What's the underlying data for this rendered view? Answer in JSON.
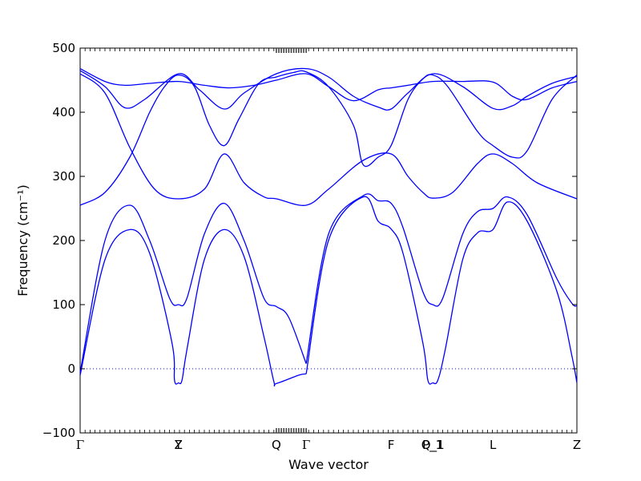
{
  "chart_data": {
    "type": "line",
    "title": "",
    "xlabel": "Wave vector",
    "ylabel": "Frequency (cm⁻¹)",
    "ylim": [
      -100,
      500
    ],
    "yticks": [
      -100,
      0,
      100,
      200,
      300,
      400,
      500
    ],
    "xlim": [
      0,
      1
    ],
    "high_symmetry_points": [
      {
        "label": "Γ",
        "x": 0.0
      },
      {
        "label": "Y",
        "x": 0.198
      },
      {
        "label": "Z",
        "x": 0.198
      },
      {
        "label": "Q",
        "x": 0.395
      },
      {
        "label": "Γ",
        "x": 0.455
      },
      {
        "label": "F",
        "x": 0.626
      },
      {
        "label": "P_1",
        "x": 0.71
      },
      {
        "label": "Q_1",
        "x": 0.71
      },
      {
        "label": "L",
        "x": 0.831
      },
      {
        "label": "Z",
        "x": 1.0
      }
    ],
    "zero_line": true,
    "line_color": "#0000ff",
    "series": [
      {
        "values": [
          [
            0.0,
            -10
          ],
          [
            0.05,
            170
          ],
          [
            0.1,
            217
          ],
          [
            0.14,
            180
          ],
          [
            0.185,
            40
          ],
          [
            0.19,
            -18
          ],
          [
            0.198,
            -22
          ],
          [
            0.205,
            -18
          ],
          [
            0.215,
            30
          ],
          [
            0.25,
            170
          ],
          [
            0.29,
            217
          ],
          [
            0.33,
            175
          ],
          [
            0.37,
            50
          ],
          [
            0.39,
            -20
          ],
          [
            0.395,
            -23
          ],
          [
            0.44,
            -10
          ],
          [
            0.455,
            -8
          ]
        ]
      },
      {
        "values": [
          [
            0.0,
            -6
          ],
          [
            0.05,
            200
          ],
          [
            0.1,
            255
          ],
          [
            0.14,
            200
          ],
          [
            0.18,
            110
          ],
          [
            0.198,
            100
          ],
          [
            0.215,
            110
          ],
          [
            0.25,
            210
          ],
          [
            0.29,
            258
          ],
          [
            0.33,
            200
          ],
          [
            0.37,
            110
          ],
          [
            0.395,
            97
          ],
          [
            0.42,
            80
          ],
          [
            0.455,
            8
          ]
        ]
      },
      {
        "values": [
          [
            0.455,
            -8
          ],
          [
            0.5,
            200
          ],
          [
            0.57,
            268
          ],
          [
            0.6,
            230
          ],
          [
            0.626,
            218
          ],
          [
            0.65,
            180
          ],
          [
            0.69,
            40
          ],
          [
            0.7,
            -18
          ],
          [
            0.71,
            -22
          ],
          [
            0.72,
            -18
          ],
          [
            0.735,
            30
          ],
          [
            0.77,
            170
          ],
          [
            0.8,
            212
          ],
          [
            0.831,
            217
          ],
          [
            0.86,
            260
          ],
          [
            0.9,
            230
          ],
          [
            0.96,
            120
          ],
          [
            0.99,
            20
          ],
          [
            1.0,
            -22
          ]
        ]
      },
      {
        "values": [
          [
            0.455,
            8
          ],
          [
            0.5,
            210
          ],
          [
            0.57,
            270
          ],
          [
            0.6,
            262
          ],
          [
            0.626,
            258
          ],
          [
            0.65,
            220
          ],
          [
            0.69,
            120
          ],
          [
            0.71,
            100
          ],
          [
            0.73,
            110
          ],
          [
            0.77,
            210
          ],
          [
            0.8,
            245
          ],
          [
            0.831,
            250
          ],
          [
            0.86,
            268
          ],
          [
            0.9,
            240
          ],
          [
            0.96,
            140
          ],
          [
            0.99,
            102
          ],
          [
            1.0,
            98
          ]
        ]
      },
      {
        "values": [
          [
            0.0,
            255
          ],
          [
            0.05,
            275
          ],
          [
            0.1,
            330
          ],
          [
            0.14,
            400
          ],
          [
            0.17,
            440
          ],
          [
            0.198,
            458
          ],
          [
            0.23,
            440
          ],
          [
            0.26,
            380
          ],
          [
            0.29,
            348
          ],
          [
            0.32,
            390
          ],
          [
            0.36,
            445
          ],
          [
            0.395,
            455
          ],
          [
            0.43,
            462
          ],
          [
            0.455,
            463
          ],
          [
            0.5,
            440
          ],
          [
            0.55,
            380
          ],
          [
            0.57,
            318
          ],
          [
            0.6,
            330
          ],
          [
            0.626,
            348
          ],
          [
            0.66,
            420
          ],
          [
            0.69,
            452
          ],
          [
            0.71,
            458
          ],
          [
            0.74,
            440
          ],
          [
            0.8,
            370
          ],
          [
            0.831,
            348
          ],
          [
            0.87,
            330
          ],
          [
            0.9,
            340
          ],
          [
            0.95,
            420
          ],
          [
            1.0,
            458
          ]
        ]
      },
      {
        "values": [
          [
            0.0,
            460
          ],
          [
            0.05,
            430
          ],
          [
            0.1,
            345
          ],
          [
            0.15,
            280
          ],
          [
            0.198,
            265
          ],
          [
            0.25,
            280
          ],
          [
            0.29,
            335
          ],
          [
            0.33,
            290
          ],
          [
            0.37,
            268
          ],
          [
            0.395,
            265
          ],
          [
            0.455,
            255
          ],
          [
            0.5,
            280
          ],
          [
            0.57,
            325
          ],
          [
            0.626,
            335
          ],
          [
            0.66,
            300
          ],
          [
            0.69,
            275
          ],
          [
            0.71,
            266
          ],
          [
            0.75,
            275
          ],
          [
            0.8,
            320
          ],
          [
            0.831,
            335
          ],
          [
            0.87,
            320
          ],
          [
            0.92,
            290
          ],
          [
            1.0,
            265
          ]
        ]
      },
      {
        "values": [
          [
            0.0,
            468
          ],
          [
            0.05,
            448
          ],
          [
            0.09,
            442
          ],
          [
            0.14,
            445
          ],
          [
            0.198,
            448
          ],
          [
            0.25,
            442
          ],
          [
            0.3,
            438
          ],
          [
            0.35,
            442
          ],
          [
            0.395,
            450
          ],
          [
            0.455,
            460
          ],
          [
            0.5,
            440
          ],
          [
            0.55,
            418
          ],
          [
            0.6,
            435
          ],
          [
            0.626,
            438
          ],
          [
            0.66,
            442
          ],
          [
            0.71,
            448
          ],
          [
            0.77,
            448
          ],
          [
            0.831,
            447
          ],
          [
            0.87,
            425
          ],
          [
            0.9,
            420
          ],
          [
            0.95,
            438
          ],
          [
            1.0,
            448
          ]
        ]
      },
      {
        "values": [
          [
            0.0,
            465
          ],
          [
            0.05,
            440
          ],
          [
            0.09,
            407
          ],
          [
            0.13,
            420
          ],
          [
            0.198,
            460
          ],
          [
            0.24,
            435
          ],
          [
            0.29,
            405
          ],
          [
            0.33,
            430
          ],
          [
            0.395,
            460
          ],
          [
            0.455,
            468
          ],
          [
            0.5,
            455
          ],
          [
            0.55,
            425
          ],
          [
            0.6,
            408
          ],
          [
            0.626,
            405
          ],
          [
            0.66,
            430
          ],
          [
            0.71,
            460
          ],
          [
            0.77,
            440
          ],
          [
            0.831,
            406
          ],
          [
            0.87,
            410
          ],
          [
            0.9,
            425
          ],
          [
            0.95,
            445
          ],
          [
            1.0,
            456
          ]
        ]
      }
    ]
  }
}
